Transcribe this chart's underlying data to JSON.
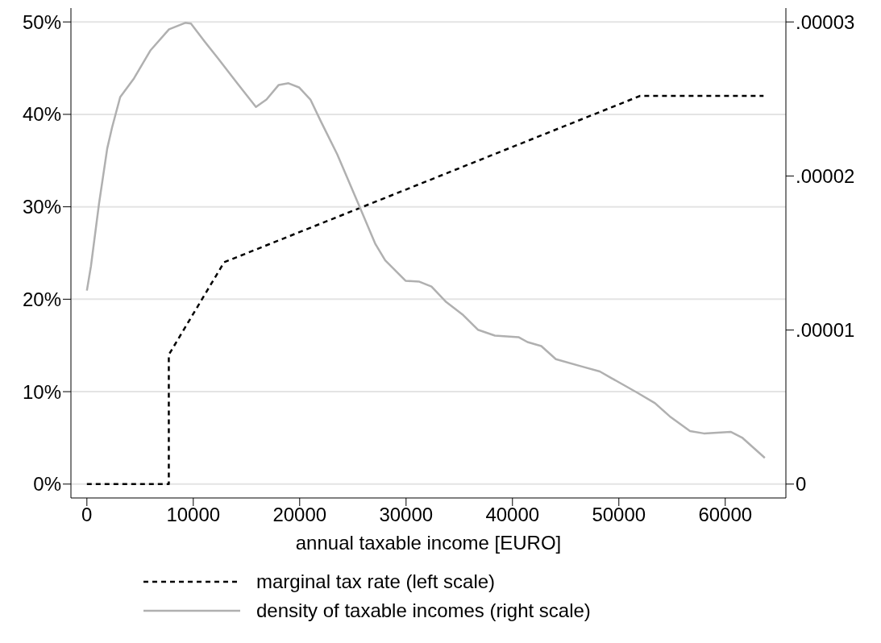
{
  "chart_data": {
    "type": "line",
    "xlabel": "annual taxable income [EURO]",
    "xlim": [
      -1500,
      65700
    ],
    "xticks": [
      0,
      10000,
      20000,
      30000,
      40000,
      50000,
      60000
    ],
    "ylim": [
      -1.5,
      51.5
    ],
    "yticks": [
      {
        "value": 0,
        "label": "0%"
      },
      {
        "value": 10,
        "label": "10%"
      },
      {
        "value": 20,
        "label": "20%"
      },
      {
        "value": 30,
        "label": "30%"
      },
      {
        "value": 40,
        "label": "40%"
      },
      {
        "value": 50,
        "label": "50%"
      }
    ],
    "y2lim": [
      -9e-07,
      3.09e-05
    ],
    "y2ticks": [
      0,
      {
        "value": 1e-05,
        "label": ".00001"
      },
      {
        "value": 2e-05,
        "label": ".00002"
      },
      {
        "value": 3e-05,
        "label": ".00003"
      }
    ],
    "grid": "y",
    "legend": "bottom",
    "series": [
      {
        "name": "marginal tax rate (left scale)",
        "color": "#000000",
        "line_style": "dashed",
        "x": [
          0,
          7700,
          7700,
          12900,
          52000,
          63600
        ],
        "values": [
          0,
          0,
          14,
          24,
          42,
          42
        ]
      },
      {
        "name": "density of taxable incomes (right scale)",
        "color": "#b0b0b0",
        "line_style": "solid",
        "axis": "y2",
        "x": [
          0,
          382,
          1146,
          1910,
          2370,
          3130,
          4430,
          5960,
          7720,
          9245,
          9780,
          11080,
          12300,
          14130,
          15890,
          16880,
          18030,
          18950,
          19940,
          21010,
          22000,
          23530,
          25590,
          27120,
          28040,
          29950,
          31250,
          32390,
          33770,
          35370,
          36750,
          38350,
          40570,
          41410,
          42710,
          44080,
          46530,
          48210,
          49280,
          51720,
          53400,
          54780,
          56690,
          57990,
          60510,
          61580,
          63720
        ],
        "values": [
          1.256e-05,
          1.415e-05,
          1.823e-05,
          2.178e-05,
          2.316e-05,
          2.512e-05,
          2.634e-05,
          2.814e-05,
          2.952e-05,
          2.994e-05,
          2.989e-05,
          2.872e-05,
          2.766e-05,
          2.602e-05,
          2.448e-05,
          2.496e-05,
          2.591e-05,
          2.602e-05,
          2.575e-05,
          2.496e-05,
          2.353e-05,
          2.141e-05,
          1.807e-05,
          1.558e-05,
          1.452e-05,
          1.32e-05,
          1.314e-05,
          1.282e-05,
          1.182e-05,
          1.097e-05,
          1.002e-05,
          9.64e-06,
          9.54e-06,
          9.22e-06,
          8.96e-06,
          8.11e-06,
          7.63e-06,
          7.31e-06,
          6.89e-06,
          5.94e-06,
          5.25e-06,
          4.4e-06,
          3.44e-06,
          3.29e-06,
          3.39e-06,
          3.02e-06,
          1.7e-06
        ]
      }
    ]
  }
}
